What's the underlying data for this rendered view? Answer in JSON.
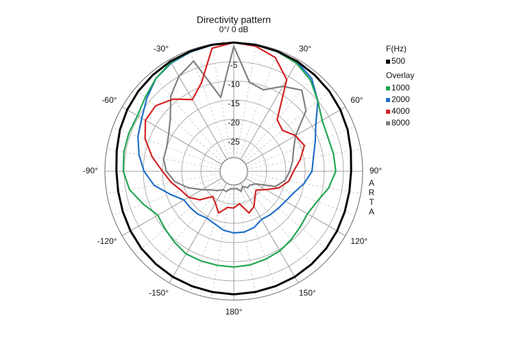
{
  "chart_data": {
    "type": "polar",
    "title": "Directivity pattern",
    "legend_title": "F(Hz)",
    "overlay_title": "Overlay",
    "watermark": "ARTA",
    "rlim": [
      -30,
      0
    ],
    "rticks": [
      -5,
      -10,
      -15,
      -20,
      -25
    ],
    "thetaticks": [
      {
        "value": 0,
        "label": "0°/ 0 dB"
      },
      {
        "value": 30,
        "label": "30°"
      },
      {
        "value": 60,
        "label": "60°"
      },
      {
        "value": 90,
        "label": "90°"
      },
      {
        "value": 120,
        "label": "120°"
      },
      {
        "value": 150,
        "label": "150°"
      },
      {
        "value": 180,
        "label": "180°"
      },
      {
        "value": -150,
        "label": "-150°"
      },
      {
        "value": -120,
        "label": "-120°"
      },
      {
        "value": -90,
        "label": "-90°"
      },
      {
        "value": -60,
        "label": "-60°"
      },
      {
        "value": -30,
        "label": "-30°"
      }
    ],
    "x": [
      -180,
      -170,
      -160,
      -150,
      -140,
      -130,
      -120,
      -110,
      -100,
      -90,
      -80,
      -70,
      -60,
      -50,
      -40,
      -30,
      -20,
      -10,
      0,
      10,
      20,
      30,
      40,
      50,
      60,
      70,
      80,
      90,
      100,
      110,
      120,
      130,
      140,
      150,
      160,
      170,
      180
    ],
    "series": [
      {
        "name": "500",
        "color": "#000000",
        "values": [
          -1.5,
          -1.6,
          -1.7,
          -1.8,
          -2,
          -2.2,
          -2.5,
          -2.8,
          -3,
          -3,
          -2.6,
          -2,
          -1.5,
          -1.1,
          -0.8,
          -0.5,
          -0.3,
          -0.1,
          0,
          -0.1,
          -0.3,
          -0.5,
          -0.8,
          -1.1,
          -1.5,
          -2,
          -2.6,
          -3,
          -3,
          -2.8,
          -2.5,
          -2.2,
          -2,
          -1.8,
          -1.7,
          -1.6,
          -1.5
        ]
      },
      {
        "name": "1000",
        "color": "#1fa552",
        "values": [
          -8.6,
          -8.7,
          -8.7,
          -8.7,
          -9.5,
          -10.2,
          -10.7,
          -8.5,
          -6,
          -4.8,
          -4.5,
          -4.5,
          -4.6,
          -3.5,
          -2,
          -0.8,
          -0.4,
          -0.1,
          0,
          -0.1,
          -0.4,
          -1,
          -2.5,
          -5,
          -7,
          -7.5,
          -7.2,
          -7,
          -8.5,
          -10.5,
          -11.4,
          -11,
          -10.3,
          -9.6,
          -9.2,
          -8.8,
          -8.6
        ]
      },
      {
        "name": "2000",
        "color": "#1f6fc8",
        "values": [
          -17.5,
          -18,
          -19,
          -19.5,
          -19,
          -18.8,
          -18.6,
          -16,
          -12.5,
          -10.2,
          -8.5,
          -7,
          -5.9,
          -4,
          -2,
          -1,
          -0.5,
          -0.2,
          0,
          -0.2,
          -0.3,
          -0.6,
          -2,
          -5,
          -8.9,
          -11,
          -12.5,
          -13.2,
          -15,
          -17,
          -18,
          -18.5,
          -18.8,
          -19.1,
          -18,
          -17.5,
          -17.5
        ]
      },
      {
        "name": "4000",
        "color": "#d42020",
        "values": [
          -24,
          -24,
          -22,
          -24,
          -25,
          -22,
          -20,
          -19,
          -17,
          -15,
          -12,
          -9,
          -7,
          -7,
          -9,
          -12,
          -9,
          -1,
          0,
          -0.5,
          -2,
          -6,
          -16,
          -17,
          -15,
          -14,
          -16,
          -18,
          -19,
          -21,
          -24,
          -26,
          -25,
          -23,
          -22,
          -25,
          -24
        ]
      },
      {
        "name": "8000",
        "color": "#808080",
        "values": [
          -29,
          -29,
          -28,
          -28,
          -27,
          -26,
          -24,
          -21,
          -18,
          -16,
          -15,
          -15,
          -14,
          -12,
          -8,
          -5,
          -3,
          -14,
          -1,
          -10,
          -11,
          -8,
          -6,
          -9,
          -15,
          -17,
          -18,
          -19,
          -20,
          -22,
          -27,
          -28,
          -28,
          -29,
          -28,
          -29,
          -29
        ]
      }
    ]
  }
}
